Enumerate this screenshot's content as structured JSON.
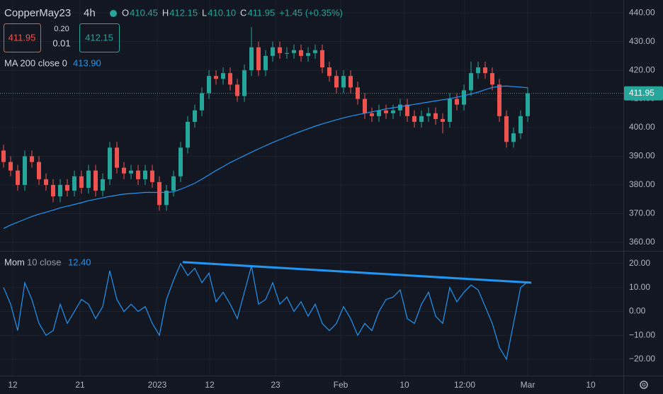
{
  "header": {
    "symbol": "CopperMay23",
    "interval": "4h",
    "ohlc": [
      {
        "label": "O",
        "value": "410.45"
      },
      {
        "label": "H",
        "value": "412.15"
      },
      {
        "label": "L",
        "value": "410.10"
      },
      {
        "label": "C",
        "value": "411.95"
      }
    ],
    "change": "+1.45 (+0.35%)",
    "sell": "411.95",
    "spread_top": "0.20",
    "spread": "0.01",
    "buy": "412.15"
  },
  "chart_data": [
    {
      "type": "candlestick",
      "xlim": [
        -0.5,
        87.5
      ],
      "xticks": [
        {
          "value": 1.3,
          "label": "12"
        },
        {
          "value": 10.8,
          "label": "21"
        },
        {
          "value": 21.7,
          "label": "2023"
        },
        {
          "value": 29.1,
          "label": "12"
        },
        {
          "value": 38.4,
          "label": "23"
        },
        {
          "value": 47.6,
          "label": "Feb"
        },
        {
          "value": 56.6,
          "label": "10"
        },
        {
          "value": 65.1,
          "label": "12:00"
        },
        {
          "value": 74,
          "label": "Mar"
        },
        {
          "value": 82.9,
          "label": "10"
        }
      ],
      "ylim": [
        357,
        444.5
      ],
      "yticks": [
        {
          "value": 360,
          "label": "360.00"
        },
        {
          "value": 370,
          "label": "370.00"
        },
        {
          "value": 380,
          "label": "380.00"
        },
        {
          "value": 390,
          "label": "390.00"
        },
        {
          "value": 400,
          "label": "400.00"
        },
        {
          "value": 410,
          "label": "410.00"
        },
        {
          "value": 420,
          "label": "420.00"
        },
        {
          "value": 430,
          "label": "430.00"
        },
        {
          "value": 440,
          "label": "440.00"
        }
      ],
      "grid": true,
      "up_color": "#26a69a",
      "down_color": "#ef5350",
      "open": [
        392,
        388,
        385,
        380,
        390,
        388,
        382,
        380,
        376,
        380,
        378,
        383,
        379,
        385,
        378,
        382,
        393,
        386,
        384,
        385,
        382,
        385,
        381,
        373,
        378,
        383,
        393,
        402,
        406,
        412,
        418,
        417,
        419,
        415,
        411,
        420,
        428,
        420,
        425,
        428,
        426,
        426,
        427,
        425,
        426,
        427,
        421,
        418,
        414,
        418,
        414,
        410,
        405,
        404,
        406,
        405,
        406,
        408,
        404,
        402,
        404,
        405,
        403,
        402,
        410,
        408,
        413,
        419,
        421,
        419,
        415,
        404,
        395,
        398,
        404
      ],
      "high": [
        394,
        390,
        387,
        392,
        392,
        390,
        384,
        382,
        382,
        382,
        385,
        385,
        387,
        387,
        384,
        395,
        395,
        388,
        387,
        387,
        387,
        387,
        383,
        380,
        385,
        395,
        404,
        408,
        414,
        420,
        420,
        421,
        421,
        417,
        422,
        435,
        430,
        427,
        430,
        430,
        428,
        429,
        429,
        428,
        429,
        429,
        423,
        420,
        420,
        420,
        416,
        412,
        407,
        408,
        408,
        408,
        410,
        410,
        406,
        406,
        407,
        407,
        405,
        412,
        412,
        415,
        423,
        423,
        423,
        421,
        417,
        406,
        400,
        406,
        414
      ],
      "low": [
        386,
        383,
        378,
        378,
        386,
        380,
        378,
        374,
        374,
        376,
        376,
        377,
        377,
        376,
        376,
        380,
        384,
        382,
        382,
        380,
        380,
        379,
        371,
        371,
        376,
        381,
        391,
        400,
        404,
        410,
        415,
        415,
        413,
        409,
        409,
        418,
        418,
        418,
        423,
        424,
        424,
        424,
        423,
        423,
        424,
        419,
        416,
        412,
        412,
        412,
        408,
        403,
        402,
        402,
        403,
        403,
        404,
        402,
        400,
        400,
        402,
        401,
        398,
        400,
        406,
        406,
        411,
        417,
        417,
        413,
        402,
        393,
        393,
        396,
        402
      ],
      "close": [
        388,
        385,
        380,
        390,
        388,
        382,
        380,
        376,
        380,
        378,
        383,
        379,
        385,
        378,
        382,
        393,
        386,
        384,
        385,
        382,
        385,
        381,
        373,
        378,
        383,
        393,
        402,
        406,
        412,
        418,
        417,
        419,
        415,
        411,
        420,
        428,
        420,
        425,
        428,
        426,
        426,
        427,
        425,
        426,
        427,
        421,
        418,
        414,
        418,
        414,
        410,
        405,
        404,
        406,
        405,
        406,
        408,
        404,
        402,
        404,
        405,
        403,
        402,
        410,
        408,
        413,
        419,
        421,
        419,
        415,
        404,
        395,
        398,
        404,
        411.95
      ],
      "series": [
        {
          "name": "MA 200 close 0",
          "legend_value": "413.90",
          "color": "#2196f3",
          "values": [
            364.8,
            366,
            367,
            368,
            369,
            369.8,
            370.5,
            371.2,
            372,
            372.6,
            373.2,
            373.8,
            374.5,
            375,
            375.5,
            376,
            376.4,
            376.8,
            377,
            377.2,
            377.4,
            377.4,
            377.4,
            377.4,
            377.6,
            378.5,
            379.5,
            380.6,
            382,
            383.5,
            385,
            386.4,
            387.8,
            389,
            390.2,
            391.4,
            392.6,
            393.7,
            394.8,
            395.8,
            396.8,
            397.8,
            398.7,
            399.6,
            400.5,
            401.3,
            402,
            402.7,
            403.4,
            404,
            404.5,
            405,
            405.5,
            406,
            406.5,
            406.9,
            407.3,
            407.7,
            408.1,
            408.5,
            408.9,
            409.3,
            409.7,
            410.1,
            410.6,
            411.1,
            411.7,
            412.4,
            413.2,
            414,
            414.4,
            414.5,
            414.3,
            414.1,
            413.9
          ]
        }
      ],
      "last_price": 411.95,
      "last_price_color": "#26a69a"
    },
    {
      "type": "line",
      "xlim": [
        -0.5,
        87.5
      ],
      "ylim": [
        -26.8,
        25
      ],
      "yticks": [
        {
          "value": -20,
          "label": "−20.00"
        },
        {
          "value": -10,
          "label": "−10.00"
        },
        {
          "value": 0,
          "label": "0.00"
        },
        {
          "value": 10,
          "label": "10.00"
        },
        {
          "value": 20,
          "label": "20.00"
        }
      ],
      "grid": true,
      "series": [
        {
          "name": "Mom",
          "params": "10 close",
          "legend_value": "12.40",
          "color": "#2196f3",
          "values": [
            10,
            3,
            -8,
            12,
            5,
            -5,
            -10,
            -8,
            3,
            -5,
            0,
            5,
            3,
            -3,
            2,
            17,
            5,
            0,
            3,
            0,
            2,
            -5,
            -10,
            5,
            13,
            20,
            15,
            18,
            12,
            16,
            4,
            8,
            3,
            -3,
            8,
            19,
            3,
            5,
            12,
            3,
            6,
            0,
            4,
            -2,
            3,
            -5,
            -8,
            -5,
            2,
            -3,
            -10,
            -5,
            -8,
            0,
            5,
            6,
            9,
            -3,
            -5,
            3,
            8,
            -2,
            -5,
            10,
            4,
            8,
            11,
            9,
            2,
            -5,
            -15,
            -20,
            -5,
            10,
            12.4
          ]
        }
      ],
      "trendline": {
        "x": [
          25.3,
          74.5
        ],
        "values": [
          20.6,
          12.0
        ],
        "color": "#2196f3"
      }
    }
  ]
}
